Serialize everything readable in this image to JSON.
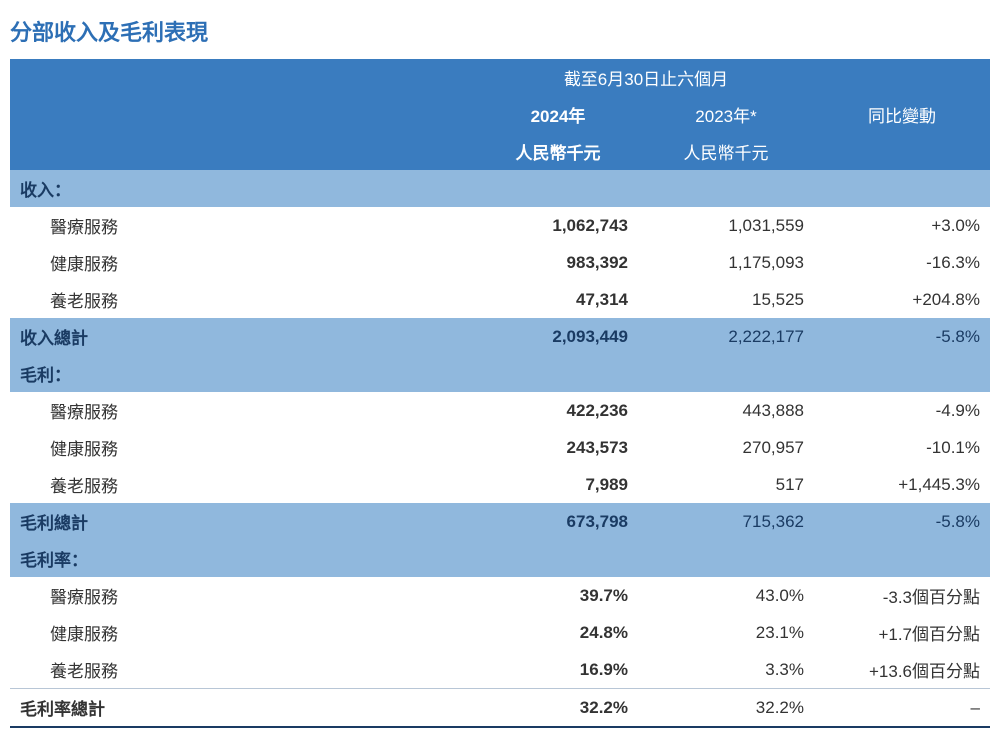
{
  "title": "分部收入及毛利表現",
  "header": {
    "period": "截至6月30日止六個月",
    "col_2024_year": "2024年",
    "col_2023_year": "2023年*",
    "col_change": "同比變動",
    "unit_2024": "人民幣千元",
    "unit_2023": "人民幣千元"
  },
  "sections": {
    "revenue": {
      "label": "收入：",
      "rows": [
        {
          "label": "醫療服務",
          "v2024": "1,062,743",
          "v2023": "1,031,559",
          "chg": "+3.0%"
        },
        {
          "label": "健康服務",
          "v2024": "983,392",
          "v2023": "1,175,093",
          "chg": "-16.3%"
        },
        {
          "label": "養老服務",
          "v2024": "47,314",
          "v2023": "15,525",
          "chg": "+204.8%"
        }
      ],
      "total": {
        "label": "收入總計",
        "v2024": "2,093,449",
        "v2023": "2,222,177",
        "chg": "-5.8%"
      }
    },
    "gross": {
      "label": "毛利：",
      "rows": [
        {
          "label": "醫療服務",
          "v2024": "422,236",
          "v2023": "443,888",
          "chg": "-4.9%"
        },
        {
          "label": "健康服務",
          "v2024": "243,573",
          "v2023": "270,957",
          "chg": "-10.1%"
        },
        {
          "label": "養老服務",
          "v2024": "7,989",
          "v2023": "517",
          "chg": "+1,445.3%"
        }
      ],
      "total": {
        "label": "毛利總計",
        "v2024": "673,798",
        "v2023": "715,362",
        "chg": "-5.8%"
      }
    },
    "margin": {
      "label": "毛利率：",
      "rows": [
        {
          "label": "醫療服務",
          "v2024": "39.7%",
          "v2023": "43.0%",
          "chg": "-3.3個百分點"
        },
        {
          "label": "健康服務",
          "v2024": "24.8%",
          "v2023": "23.1%",
          "chg": "+1.7個百分點"
        },
        {
          "label": "養老服務",
          "v2024": "16.9%",
          "v2023": "3.3%",
          "chg": "+13.6個百分點"
        }
      ],
      "total": {
        "label": "毛利率總計",
        "v2024": "32.2%",
        "v2023": "32.2%",
        "chg": "–"
      }
    }
  },
  "colors": {
    "title": "#2d6fb5",
    "header_bg": "#3a7cbf",
    "band_bg": "#90b8dd",
    "band_text": "#1a3b63",
    "final_rule": "#1a3b63"
  }
}
